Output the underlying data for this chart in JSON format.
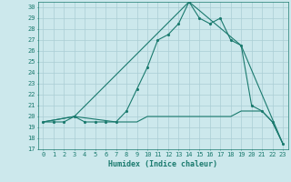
{
  "title": "",
  "xlabel": "Humidex (Indice chaleur)",
  "ylabel": "",
  "bg_color": "#cce8ec",
  "grid_color": "#aacdd4",
  "line_color": "#1a7a6e",
  "xlim": [
    -0.5,
    23.5
  ],
  "ylim": [
    17,
    30.5
  ],
  "yticks": [
    17,
    18,
    19,
    20,
    21,
    22,
    23,
    24,
    25,
    26,
    27,
    28,
    29,
    30
  ],
  "xticks": [
    0,
    1,
    2,
    3,
    4,
    5,
    6,
    7,
    8,
    9,
    10,
    11,
    12,
    13,
    14,
    15,
    16,
    17,
    18,
    19,
    20,
    21,
    22,
    23
  ],
  "line1_x": [
    0,
    1,
    2,
    3,
    4,
    5,
    6,
    7,
    8,
    9,
    10,
    11,
    12,
    13,
    14,
    15,
    16,
    17,
    18,
    19,
    20,
    21,
    22,
    23
  ],
  "line1_y": [
    19.5,
    19.5,
    19.5,
    20.0,
    19.5,
    19.5,
    19.5,
    19.5,
    20.5,
    22.5,
    24.5,
    27.0,
    27.5,
    28.5,
    30.5,
    29.0,
    28.5,
    29.0,
    27.0,
    26.5,
    21.0,
    20.5,
    19.5,
    17.5
  ],
  "line2_x": [
    0,
    3,
    14,
    19,
    23
  ],
  "line2_y": [
    19.5,
    20.0,
    30.5,
    26.5,
    17.5
  ],
  "line3_x": [
    0,
    3,
    7,
    8,
    9,
    10,
    11,
    12,
    13,
    14,
    15,
    16,
    17,
    18,
    19,
    20,
    21,
    22,
    23
  ],
  "line3_y": [
    19.5,
    20.0,
    19.5,
    19.5,
    19.5,
    20.0,
    20.0,
    20.0,
    20.0,
    20.0,
    20.0,
    20.0,
    20.0,
    20.0,
    20.5,
    20.5,
    20.5,
    19.5,
    17.5
  ]
}
